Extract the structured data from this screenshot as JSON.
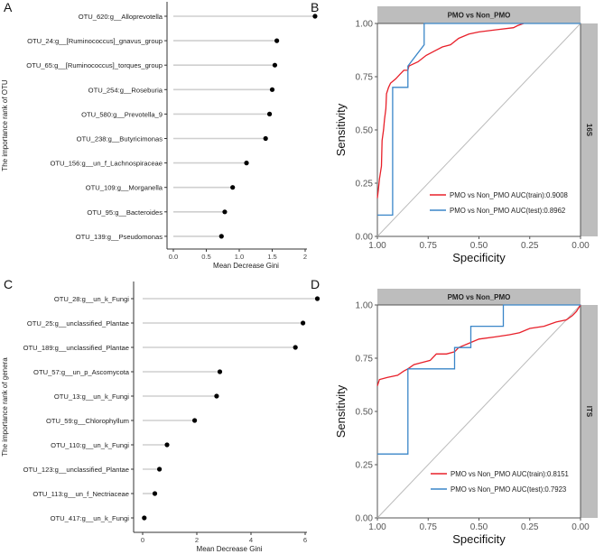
{
  "chart_data": [
    {
      "panel": "A",
      "type": "lollipop",
      "ylabel": "The importance rank of OTU",
      "xlabel": "Mean Decrease Gini",
      "xlim": [
        0,
        2.0
      ],
      "xticks": [
        "0.0",
        "0.5",
        "1.0",
        "1.5",
        "2"
      ],
      "xtick_values": [
        0,
        0.5,
        1.0,
        1.5,
        2.0
      ],
      "categories": [
        "OTU_620:g__Alloprevotella",
        "OTU_24:g__[Ruminococcus]_gnavus_group",
        "OTU_65:g__[Ruminococcus]_torques_group",
        "OTU_254:g__Roseburia",
        "OTU_580:g__Prevotella_9",
        "OTU_238:g__Butyricimonas",
        "OTU_156:g__un_f_Lachnospiraceae",
        "OTU_109:g__Morganella",
        "OTU_95:g__Bacteroides",
        "OTU_139:g__Pseudomonas"
      ],
      "values": [
        2.15,
        1.57,
        1.54,
        1.5,
        1.46,
        1.4,
        1.11,
        0.9,
        0.78,
        0.73
      ]
    },
    {
      "panel": "B",
      "type": "line",
      "strip_top": "PMO vs Non_PMO",
      "strip_right": "16S",
      "xlabel": "Specificity",
      "ylabel": "Sensitivity",
      "xlim": [
        1.0,
        0.0
      ],
      "ylim": [
        0.0,
        1.0
      ],
      "xticks": [
        "1.00",
        "0.75",
        "0.50",
        "0.25",
        "0.00"
      ],
      "yticks": [
        "0.00",
        "0.25",
        "0.50",
        "0.75",
        "1.00"
      ],
      "legend_position": "bottom-right",
      "series": [
        {
          "name": "PMO vs Non_PMO AUC(train):0.9008",
          "color": "#e8202a",
          "points": [
            [
              1,
              0.18
            ],
            [
              0.995,
              0.22
            ],
            [
              0.99,
              0.27
            ],
            [
              0.985,
              0.3
            ],
            [
              0.98,
              0.33
            ],
            [
              0.977,
              0.45
            ],
            [
              0.97,
              0.5
            ],
            [
              0.965,
              0.55
            ],
            [
              0.958,
              0.6
            ],
            [
              0.955,
              0.67
            ],
            [
              0.945,
              0.7
            ],
            [
              0.935,
              0.72
            ],
            [
              0.91,
              0.74
            ],
            [
              0.89,
              0.76
            ],
            [
              0.87,
              0.78
            ],
            [
              0.85,
              0.78
            ],
            [
              0.845,
              0.8
            ],
            [
              0.8,
              0.82
            ],
            [
              0.76,
              0.85
            ],
            [
              0.72,
              0.87
            ],
            [
              0.68,
              0.89
            ],
            [
              0.64,
              0.9
            ],
            [
              0.6,
              0.93
            ],
            [
              0.55,
              0.95
            ],
            [
              0.5,
              0.96
            ],
            [
              0.42,
              0.97
            ],
            [
              0.33,
              0.98
            ],
            [
              0.31,
              0.99
            ],
            [
              0.28,
              1.0
            ]
          ]
        },
        {
          "name": "PMO vs Non_PMO AUC(test):0.8962",
          "color": "#3a86c8",
          "points": [
            [
              1,
              0.1
            ],
            [
              0.925,
              0.1
            ],
            [
              0.925,
              0.7
            ],
            [
              0.85,
              0.7
            ],
            [
              0.85,
              0.8
            ],
            [
              0.77,
              0.9
            ],
            [
              0.77,
              1.0
            ],
            [
              0,
              1.0
            ]
          ]
        }
      ]
    },
    {
      "panel": "C",
      "type": "lollipop",
      "ylabel": "The importance rank of genera",
      "xlabel": "Mean Decrease Gini",
      "xlim": [
        0,
        6
      ],
      "xticks": [
        "0",
        "2",
        "4",
        "6"
      ],
      "xtick_values": [
        0,
        2,
        4,
        6
      ],
      "categories": [
        "OTU_28:g__un_k_Fungi",
        "OTU_25:g__unclassified_Plantae",
        "OTU_189:g__unclassified_Plantae",
        "OTU_57:g__un_p_Ascomycota",
        "OTU_13:g__un_k_Fungi",
        "OTU_59:g__Chlorophyllum",
        "OTU_110:g__un_k_Fungi",
        "OTU_123:g__unclassified_Plantae",
        "OTU_113:g__un_f_Nectriaceae",
        "OTU_417:g__un_k_Fungi"
      ],
      "values": [
        6.45,
        5.92,
        5.64,
        2.85,
        2.73,
        1.92,
        0.9,
        0.62,
        0.45,
        0.06
      ]
    },
    {
      "panel": "D",
      "type": "line",
      "strip_top": "PMO vs Non_PMO",
      "strip_right": "ITS",
      "xlabel": "Specificity",
      "ylabel": "Sensitivity",
      "xlim": [
        1.0,
        0.0
      ],
      "ylim": [
        0.0,
        1.0
      ],
      "xticks": [
        "1.00",
        "0.75",
        "0.50",
        "0.25",
        "0.00"
      ],
      "yticks": [
        "0.00",
        "0.25",
        "0.50",
        "0.75",
        "1.00"
      ],
      "legend_position": "bottom-right",
      "series": [
        {
          "name": "PMO vs Non_PMO AUC(train):0.8151",
          "color": "#e8202a",
          "points": [
            [
              1,
              0.62
            ],
            [
              0.99,
              0.65
            ],
            [
              0.95,
              0.66
            ],
            [
              0.9,
              0.67
            ],
            [
              0.87,
              0.69
            ],
            [
              0.85,
              0.7
            ],
            [
              0.82,
              0.72
            ],
            [
              0.78,
              0.73
            ],
            [
              0.74,
              0.74
            ],
            [
              0.71,
              0.77
            ],
            [
              0.66,
              0.77
            ],
            [
              0.62,
              0.78
            ],
            [
              0.6,
              0.8
            ],
            [
              0.55,
              0.82
            ],
            [
              0.5,
              0.84
            ],
            [
              0.42,
              0.85
            ],
            [
              0.35,
              0.86
            ],
            [
              0.3,
              0.87
            ],
            [
              0.25,
              0.89
            ],
            [
              0.18,
              0.9
            ],
            [
              0.12,
              0.92
            ],
            [
              0.07,
              0.93
            ],
            [
              0.04,
              0.95
            ],
            [
              0.02,
              0.97
            ],
            [
              0,
              1.0
            ]
          ]
        },
        {
          "name": "PMO vs Non_PMO AUC(test):0.7923",
          "color": "#3a86c8",
          "points": [
            [
              1,
              0.3
            ],
            [
              0.85,
              0.3
            ],
            [
              0.85,
              0.7
            ],
            [
              0.62,
              0.7
            ],
            [
              0.62,
              0.8
            ],
            [
              0.54,
              0.8
            ],
            [
              0.54,
              0.9
            ],
            [
              0.38,
              0.9
            ],
            [
              0.38,
              1.0
            ],
            [
              0,
              1.0
            ]
          ]
        }
      ]
    }
  ],
  "panel_labels": [
    "A",
    "B",
    "C",
    "D"
  ]
}
